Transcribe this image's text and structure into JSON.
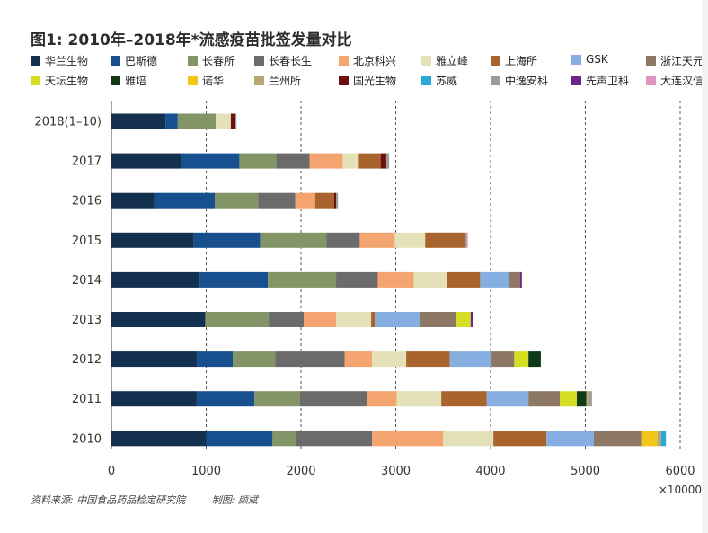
{
  "chart_data": {
    "type": "bar",
    "orientation": "horizontal",
    "stacked": true,
    "title": "图1: 2010年–2018年*流感疫苗批签发量对比",
    "x_unit": "×10000",
    "xlim": [
      0,
      6000
    ],
    "x_ticks": [
      "0",
      "1000",
      "2000",
      "3000",
      "4000",
      "5000",
      "6000"
    ],
    "grid": "vertical-dashed",
    "categories": [
      "2018(1–10)",
      "2017",
      "2016",
      "2015",
      "2014",
      "2013",
      "2012",
      "2011",
      "2010"
    ],
    "series": [
      {
        "name": "华兰生物",
        "color": "#14304f",
        "values": [
          570,
          730,
          450,
          870,
          930,
          990,
          900,
          900,
          1000
        ]
      },
      {
        "name": "巴斯德",
        "color": "#174f8f",
        "values": [
          130,
          620,
          640,
          700,
          720,
          0,
          380,
          610,
          700
        ]
      },
      {
        "name": "长春所",
        "color": "#839566",
        "values": [
          400,
          390,
          460,
          700,
          720,
          670,
          450,
          480,
          250
        ]
      },
      {
        "name": "长春长生",
        "color": "#6b6b6b",
        "values": [
          0,
          350,
          390,
          350,
          440,
          370,
          730,
          710,
          800
        ]
      },
      {
        "name": "北京科兴",
        "color": "#f3a46f",
        "values": [
          0,
          350,
          210,
          370,
          380,
          340,
          290,
          310,
          750
        ]
      },
      {
        "name": "雅立峰",
        "color": "#e4e1b8",
        "values": [
          160,
          170,
          0,
          320,
          350,
          370,
          360,
          470,
          530
        ]
      },
      {
        "name": "上海所",
        "color": "#a8642c",
        "values": [
          0,
          230,
          200,
          420,
          350,
          40,
          460,
          480,
          560
        ]
      },
      {
        "name": "GSK",
        "color": "#86aee0",
        "values": [
          0,
          0,
          0,
          0,
          300,
          480,
          430,
          440,
          500
        ]
      },
      {
        "name": "浙江天元",
        "color": "#8c7865",
        "values": [
          0,
          0,
          0,
          0,
          120,
          380,
          250,
          330,
          500
        ]
      },
      {
        "name": "天坛生物",
        "color": "#d4df24",
        "values": [
          0,
          0,
          0,
          0,
          0,
          150,
          150,
          180,
          0
        ]
      },
      {
        "name": "雅培",
        "color": "#0f3a1a",
        "values": [
          0,
          0,
          0,
          0,
          0,
          0,
          130,
          100,
          0
        ]
      },
      {
        "name": "诺华",
        "color": "#f2c619",
        "values": [
          0,
          0,
          0,
          0,
          0,
          0,
          0,
          0,
          170
        ]
      },
      {
        "name": "兰州所",
        "color": "#b8a775",
        "values": [
          0,
          0,
          0,
          0,
          0,
          0,
          0,
          30,
          40
        ]
      },
      {
        "name": "国光生物",
        "color": "#6e0e0e",
        "values": [
          40,
          60,
          20,
          0,
          0,
          0,
          0,
          0,
          0
        ]
      },
      {
        "name": "苏威",
        "color": "#2aa8d8",
        "values": [
          0,
          0,
          0,
          0,
          0,
          0,
          0,
          0,
          50
        ]
      },
      {
        "name": "中逸安科",
        "color": "#9c9c9c",
        "values": [
          20,
          30,
          20,
          20,
          0,
          0,
          0,
          30,
          0
        ]
      },
      {
        "name": "先声卫科",
        "color": "#6e2483",
        "values": [
          0,
          0,
          0,
          0,
          20,
          30,
          0,
          0,
          0
        ]
      },
      {
        "name": "大连汉信",
        "color": "#e193c0",
        "values": [
          0,
          0,
          0,
          10,
          0,
          0,
          0,
          0,
          0
        ]
      }
    ]
  },
  "footer": {
    "source": "资料来源: 中国食品药品检定研究院",
    "credit": "制图: 颜斌"
  }
}
